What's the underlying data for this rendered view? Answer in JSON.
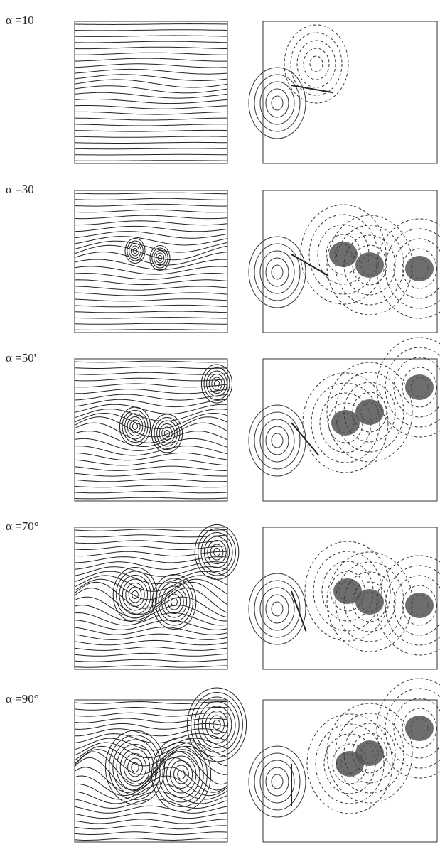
{
  "panels": [
    {
      "label": "α =10"
    },
    {
      "label": "α =30"
    },
    {
      "label": "α =50'"
    },
    {
      "label": "α =70°"
    },
    {
      "label": "α =90°"
    }
  ]
}
